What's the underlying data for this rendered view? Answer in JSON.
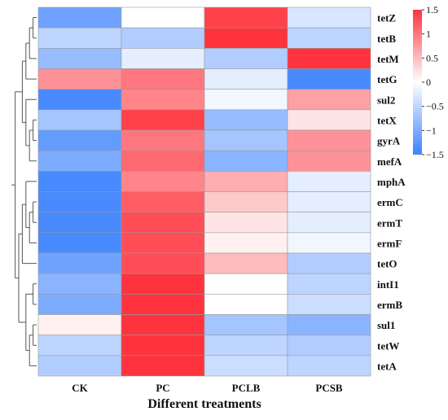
{
  "chart_data": {
    "type": "heatmap",
    "title": "",
    "xlabel": "Different treatments",
    "ylabel": "",
    "columns": [
      "CK",
      "PC",
      "PCLB",
      "PCSB"
    ],
    "rows": [
      "tetZ",
      "tetB",
      "tetM",
      "tetG",
      "sul2",
      "tetX",
      "gyrA",
      "mefA",
      "mphA",
      "ermC",
      "ermT",
      "ermF",
      "tetO",
      "intI1",
      "ermB",
      "sul1",
      "tetW",
      "tetA"
    ],
    "values": [
      [
        -1.1,
        0.0,
        1.4,
        -0.3
      ],
      [
        -0.5,
        -0.6,
        1.5,
        -0.5
      ],
      [
        -0.8,
        -0.2,
        -0.6,
        1.5
      ],
      [
        0.8,
        1.0,
        -0.2,
        -1.4
      ],
      [
        -1.4,
        0.9,
        -0.1,
        0.7
      ],
      [
        -0.7,
        1.4,
        -0.8,
        0.2
      ],
      [
        -1.2,
        1.0,
        -0.7,
        0.8
      ],
      [
        -1.0,
        1.1,
        -0.9,
        0.8
      ],
      [
        -1.4,
        0.9,
        0.6,
        -0.2
      ],
      [
        -1.4,
        1.2,
        0.4,
        -0.2
      ],
      [
        -1.4,
        1.3,
        0.2,
        -0.2
      ],
      [
        -1.4,
        1.3,
        0.1,
        -0.1
      ],
      [
        -1.1,
        1.3,
        0.5,
        -0.6
      ],
      [
        -0.9,
        1.5,
        0.0,
        -0.5
      ],
      [
        -1.0,
        1.5,
        0.0,
        -0.4
      ],
      [
        0.1,
        1.5,
        -0.7,
        -0.9
      ],
      [
        -0.5,
        1.6,
        -0.5,
        -0.6
      ],
      [
        -0.6,
        1.6,
        -0.4,
        -0.5
      ]
    ],
    "colorbar": {
      "min": -1.5,
      "max": 1.5,
      "ticks": [
        1.5,
        1,
        0.5,
        0,
        -0.5,
        -1,
        -1.5
      ]
    },
    "colors": {
      "low": "#3c82ff",
      "mid": "#ffffff",
      "high": "#ff333d"
    },
    "dendrogram": "rows-left",
    "grid": true,
    "legend_position": "right"
  }
}
